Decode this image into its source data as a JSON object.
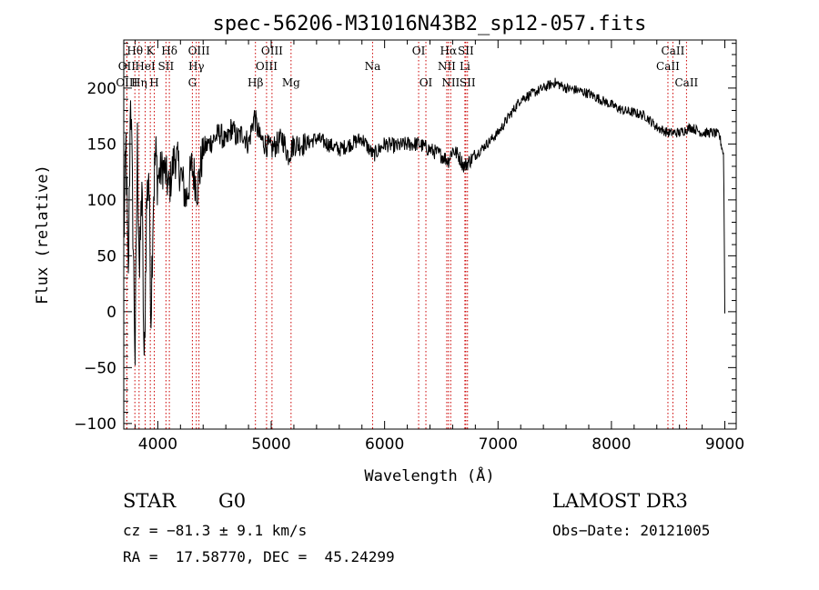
{
  "chart_data": {
    "type": "line",
    "title": "spec-56206-M31016N43B2_sp12-057.fits",
    "xlabel": "Wavelength (Å)",
    "ylabel": "Flux (relative)",
    "xlim": [
      3700,
      9100
    ],
    "ylim": [
      -105,
      243
    ],
    "xticks": [
      4000,
      5000,
      6000,
      7000,
      8000,
      9000
    ],
    "yticks": [
      -100,
      -50,
      0,
      50,
      100,
      150,
      200
    ],
    "series": [
      {
        "name": "flux",
        "x": [
          3700,
          3720,
          3740,
          3760,
          3780,
          3800,
          3820,
          3840,
          3860,
          3880,
          3900,
          3920,
          3940,
          3960,
          3980,
          4000,
          4050,
          4100,
          4150,
          4200,
          4250,
          4300,
          4350,
          4400,
          4450,
          4500,
          4550,
          4600,
          4650,
          4700,
          4750,
          4800,
          4850,
          4900,
          4950,
          5000,
          5050,
          5100,
          5150,
          5200,
          5300,
          5400,
          5500,
          5600,
          5700,
          5800,
          5900,
          6000,
          6100,
          6200,
          6300,
          6400,
          6500,
          6563,
          6600,
          6650,
          6700,
          6750,
          6800,
          6900,
          7000,
          7100,
          7200,
          7300,
          7400,
          7500,
          7600,
          7700,
          7800,
          7900,
          8000,
          8100,
          8200,
          8300,
          8400,
          8500,
          8600,
          8700,
          8800,
          8900,
          8950,
          8990,
          9000
        ],
        "values": [
          60,
          150,
          20,
          205,
          80,
          -40,
          150,
          30,
          120,
          -60,
          90,
          130,
          0,
          100,
          140,
          120,
          130,
          110,
          140,
          125,
          100,
          130,
          110,
          145,
          150,
          155,
          160,
          150,
          165,
          155,
          160,
          150,
          175,
          155,
          150,
          145,
          150,
          155,
          140,
          150,
          150,
          155,
          150,
          145,
          150,
          155,
          140,
          150,
          148,
          150,
          150,
          145,
          140,
          135,
          145,
          140,
          130,
          135,
          140,
          150,
          160,
          175,
          190,
          195,
          200,
          205,
          200,
          198,
          195,
          190,
          185,
          180,
          178,
          175,
          165,
          160,
          160,
          165,
          160,
          160,
          158,
          140,
          0
        ]
      }
    ],
    "lines": [
      {
        "name": "Hθ",
        "x": 3798,
        "row": 0
      },
      {
        "name": "OII",
        "x": 3727,
        "row": 1
      },
      {
        "name": "OIII",
        "x": 3727,
        "row": 2
      },
      {
        "name": "K",
        "x": 3934,
        "row": 0
      },
      {
        "name": "HeI",
        "x": 3889,
        "row": 1
      },
      {
        "name": "Hη",
        "x": 3835,
        "row": 2
      },
      {
        "name": "H",
        "x": 3969,
        "row": 2
      },
      {
        "name": "Hδ",
        "x": 4102,
        "row": 0
      },
      {
        "name": "SII",
        "x": 4072,
        "row": 1
      },
      {
        "name": "OIII",
        "x": 4363,
        "row": 0
      },
      {
        "name": "Hγ",
        "x": 4340,
        "row": 1
      },
      {
        "name": "G",
        "x": 4305,
        "row": 2
      },
      {
        "name": "OIII",
        "x": 5007,
        "row": 0
      },
      {
        "name": "OIII",
        "x": 4959,
        "row": 1
      },
      {
        "name": "Hβ",
        "x": 4861,
        "row": 2
      },
      {
        "name": "Mg",
        "x": 5175,
        "row": 2
      },
      {
        "name": "Na",
        "x": 5894,
        "row": 1
      },
      {
        "name": "OI",
        "x": 6300,
        "row": 0
      },
      {
        "name": "OI",
        "x": 6364,
        "row": 2
      },
      {
        "name": "Hα",
        "x": 6563,
        "row": 0
      },
      {
        "name": "SII",
        "x": 6716,
        "row": 0
      },
      {
        "name": "NII",
        "x": 6548,
        "row": 1
      },
      {
        "name": "Li",
        "x": 6708,
        "row": 1
      },
      {
        "name": "NII",
        "x": 6583,
        "row": 2
      },
      {
        "name": "SII",
        "x": 6731,
        "row": 2
      },
      {
        "name": "CaII",
        "x": 8542,
        "row": 0
      },
      {
        "name": "CaII",
        "x": 8498,
        "row": 1
      },
      {
        "name": "CaII",
        "x": 8662,
        "row": 2
      }
    ]
  },
  "info": {
    "object_class": "STAR",
    "subclass": "G0",
    "survey": "LAMOST DR3",
    "cz": "cz = −81.3 ± 9.1 km/s",
    "obs_date": "Obs−Date: 20121005",
    "coords": "RA =  17.58770, DEC =  45.24299"
  }
}
